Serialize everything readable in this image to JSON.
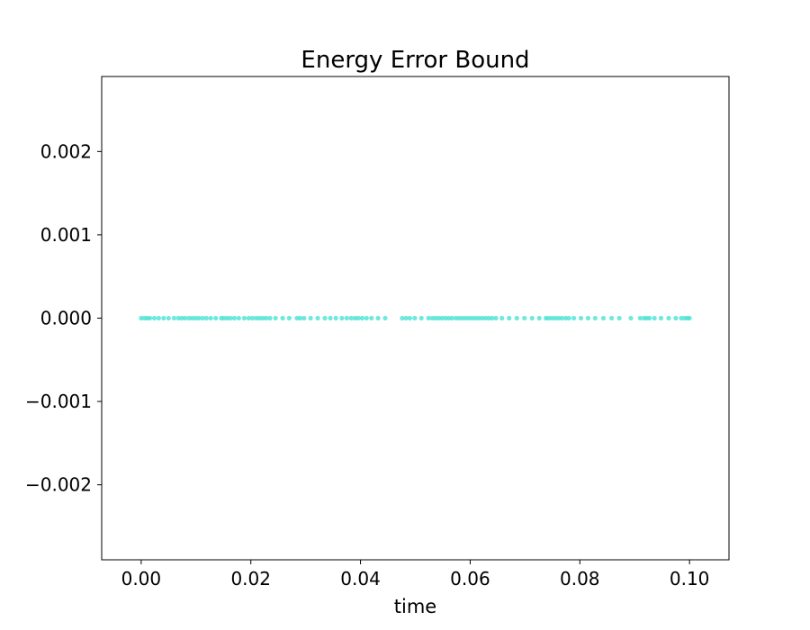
{
  "chart_data": {
    "type": "scatter",
    "title": "Energy Error Bound",
    "xlabel": "time",
    "ylabel": "",
    "xlim": [
      -0.0072,
      0.1072
    ],
    "ylim": [
      -0.0029,
      0.0029
    ],
    "x_ticks": [
      {
        "value": 0.0,
        "label": "0.00"
      },
      {
        "value": 0.02,
        "label": "0.02"
      },
      {
        "value": 0.04,
        "label": "0.04"
      },
      {
        "value": 0.06,
        "label": "0.06"
      },
      {
        "value": 0.08,
        "label": "0.08"
      },
      {
        "value": 0.1,
        "label": "0.10"
      }
    ],
    "y_ticks": [
      {
        "value": 0.002,
        "label": "0.002"
      },
      {
        "value": 0.001,
        "label": "0.001"
      },
      {
        "value": 0.0,
        "label": "0.000"
      },
      {
        "value": -0.001,
        "label": "−0.001"
      },
      {
        "value": -0.002,
        "label": "−0.002"
      }
    ],
    "grid": false,
    "legend": "none",
    "marker_color": "#40e0d0",
    "series": [
      {
        "x": [
          0.0,
          0.0006,
          0.0011,
          0.0016,
          0.0024,
          0.0032,
          0.0041,
          0.005,
          0.006,
          0.0068,
          0.0074,
          0.008,
          0.0087,
          0.0093,
          0.0099,
          0.0105,
          0.0112,
          0.0119,
          0.0127,
          0.0136,
          0.0146,
          0.0151,
          0.0157,
          0.0163,
          0.017,
          0.0178,
          0.0188,
          0.0196,
          0.0203,
          0.021,
          0.0216,
          0.0222,
          0.0228,
          0.0235,
          0.0245,
          0.0258,
          0.027,
          0.0284,
          0.029,
          0.0297,
          0.0309,
          0.0322,
          0.0335,
          0.0345,
          0.0355,
          0.0366,
          0.0375,
          0.0383,
          0.039,
          0.0396,
          0.0403,
          0.0411,
          0.042,
          0.0432,
          0.0445,
          0.0476,
          0.0483,
          0.049,
          0.0499,
          0.0511,
          0.0524,
          0.0531,
          0.0537,
          0.0543,
          0.0549,
          0.0555,
          0.0561,
          0.0567,
          0.0574,
          0.058,
          0.0586,
          0.0592,
          0.0598,
          0.0604,
          0.061,
          0.0616,
          0.0622,
          0.0628,
          0.0634,
          0.064,
          0.0647,
          0.0658,
          0.0671,
          0.0685,
          0.0699,
          0.0713,
          0.0726,
          0.0738,
          0.0743,
          0.0749,
          0.0755,
          0.0761,
          0.0767,
          0.0774,
          0.078,
          0.0789,
          0.0802,
          0.0815,
          0.0828,
          0.0843,
          0.0858,
          0.0872,
          0.0893,
          0.091,
          0.0917,
          0.0922,
          0.0927,
          0.0936,
          0.0948,
          0.0962,
          0.0975,
          0.0985,
          0.0991,
          0.0996,
          0.1
        ],
        "y": [
          0,
          0,
          0,
          0,
          0,
          0,
          0,
          0,
          0,
          0,
          0,
          0,
          0,
          0,
          0,
          0,
          0,
          0,
          0,
          0,
          0,
          0,
          0,
          0,
          0,
          0,
          0,
          0,
          0,
          0,
          0,
          0,
          0,
          0,
          0,
          0,
          0,
          0,
          0,
          0,
          0,
          0,
          0,
          0,
          0,
          0,
          0,
          0,
          0,
          0,
          0,
          0,
          0,
          0,
          0,
          0,
          0,
          0,
          0,
          0,
          0,
          0,
          0,
          0,
          0,
          0,
          0,
          0,
          0,
          0,
          0,
          0,
          0,
          0,
          0,
          0,
          0,
          0,
          0,
          0,
          0,
          0,
          0,
          0,
          0,
          0,
          0,
          0,
          0,
          0,
          0,
          0,
          0,
          0,
          0,
          0,
          0,
          0,
          0,
          0,
          0,
          0,
          0,
          0,
          0,
          0,
          0,
          0,
          0,
          0,
          0,
          0,
          0,
          0,
          0
        ]
      }
    ]
  }
}
